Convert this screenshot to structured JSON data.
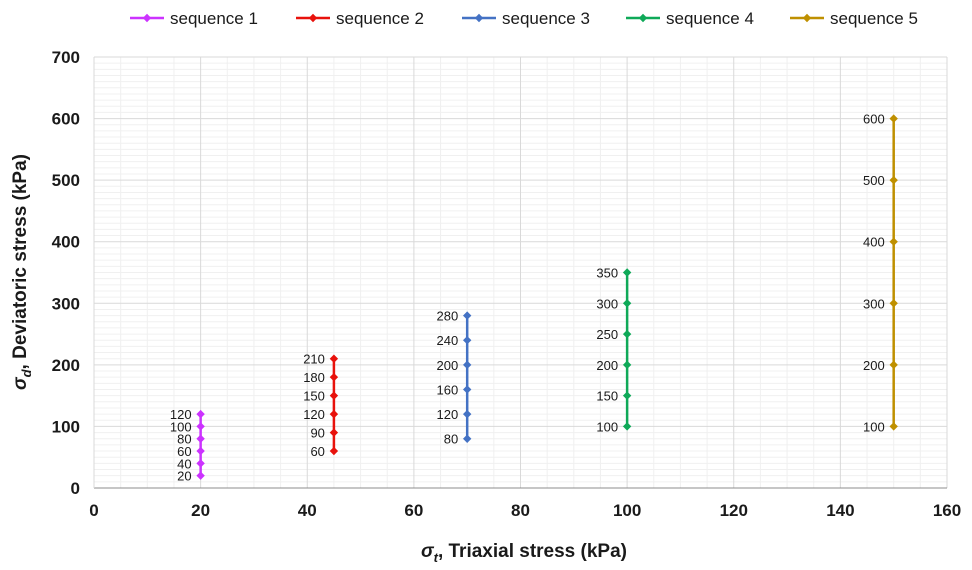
{
  "chart_data": {
    "type": "line",
    "xlabel": {
      "symbol": "σ",
      "sub": "t",
      "text": ", Triaxial stress (kPa)"
    },
    "ylabel": {
      "symbol": "σ",
      "sub": "d",
      "text": ", Deviatoric stress (kPa)"
    },
    "xlim": [
      0,
      160
    ],
    "ylim": [
      0,
      700
    ],
    "xticks": [
      0,
      20,
      40,
      60,
      80,
      100,
      120,
      140,
      160
    ],
    "yticks": [
      0,
      100,
      200,
      300,
      400,
      500,
      600,
      700
    ],
    "grid": true,
    "legend_position": "top",
    "series": [
      {
        "name": "sequence 1",
        "color": "#cc33ff",
        "x": 20,
        "values": [
          20,
          40,
          60,
          80,
          100,
          120
        ]
      },
      {
        "name": "sequence 2",
        "color": "#e8120c",
        "x": 45,
        "values": [
          60,
          90,
          120,
          150,
          180,
          210
        ]
      },
      {
        "name": "sequence 3",
        "color": "#4472c4",
        "x": 70,
        "values": [
          80,
          120,
          160,
          200,
          240,
          280
        ]
      },
      {
        "name": "sequence 4",
        "color": "#0fa958",
        "x": 100,
        "values": [
          100,
          150,
          200,
          250,
          300,
          350
        ]
      },
      {
        "name": "sequence 5",
        "color": "#bf9000",
        "x": 150,
        "values": [
          100,
          200,
          300,
          400,
          500,
          600
        ]
      }
    ]
  }
}
